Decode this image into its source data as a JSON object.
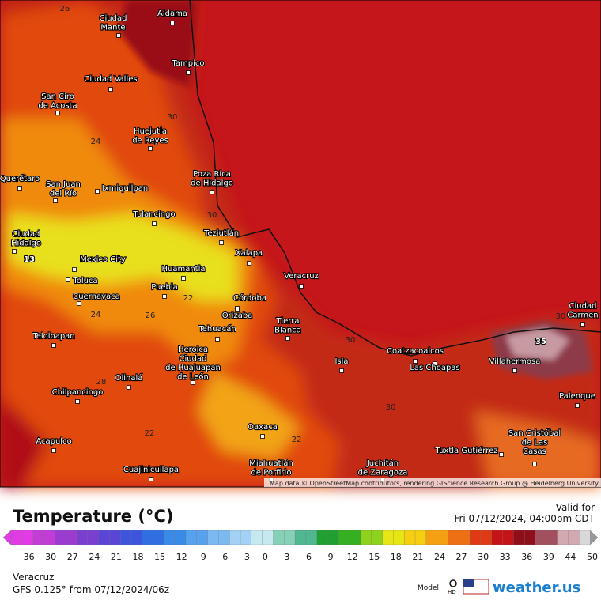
{
  "map": {
    "cities": [
      {
        "lines": [
          "Aldama"
        ]
      },
      {
        "lines": [
          "Ciudad",
          "Mante"
        ]
      },
      {
        "lines": [
          "Tampico"
        ]
      },
      {
        "lines": [
          "Ciudad Valles"
        ]
      },
      {
        "lines": [
          "San Ciro",
          "de Acosta"
        ]
      },
      {
        "lines": [
          "Huejutla",
          "de Reyes"
        ]
      },
      {
        "lines": [
          "Poza Rica",
          "de Hidalgo"
        ]
      },
      {
        "lines": [
          "Querétaro"
        ]
      },
      {
        "lines": [
          "San Juan",
          "del Río"
        ]
      },
      {
        "lines": [
          "Ixmiquilpan"
        ]
      },
      {
        "lines": [
          "Tulancingo"
        ]
      },
      {
        "lines": [
          "Teziutlán"
        ]
      },
      {
        "lines": [
          "Ciudad",
          "Hidalgo"
        ]
      },
      {
        "lines": [
          "Xalapa"
        ]
      },
      {
        "lines": [
          "Mexico City"
        ]
      },
      {
        "lines": [
          "Huamantla"
        ]
      },
      {
        "lines": [
          "Toluca"
        ]
      },
      {
        "lines": [
          "Veracruz"
        ]
      },
      {
        "lines": [
          "Puebla"
        ]
      },
      {
        "lines": [
          "Cuernavaca"
        ]
      },
      {
        "lines": [
          "Córdoba"
        ]
      },
      {
        "lines": [
          "Orizaba"
        ]
      },
      {
        "lines": [
          "Tierra",
          "Blanca"
        ]
      },
      {
        "lines": [
          "Tehuacán"
        ]
      },
      {
        "lines": [
          "Teloloapan"
        ]
      },
      {
        "lines": [
          "Heroica",
          "Ciudad",
          "de Huajuapan",
          "de León"
        ]
      },
      {
        "lines": [
          "Coatzacoalcos"
        ]
      },
      {
        "lines": [
          "Isla"
        ]
      },
      {
        "lines": [
          "Las Choapas"
        ]
      },
      {
        "lines": [
          "Villahermosa"
        ]
      },
      {
        "lines": [
          "Olinalá"
        ]
      },
      {
        "lines": [
          "Chilpancingo"
        ]
      },
      {
        "lines": [
          "Palenque"
        ]
      },
      {
        "lines": [
          "Oaxaca"
        ]
      },
      {
        "lines": [
          "Acapulco"
        ]
      },
      {
        "lines": [
          "San Cristóbal",
          "de Las",
          "Casas"
        ]
      },
      {
        "lines": [
          "Tuxtla Gutiérrez"
        ]
      },
      {
        "lines": [
          "Cuajinicuilapa"
        ]
      },
      {
        "lines": [
          "Juchitán",
          "de Zaragoza"
        ]
      },
      {
        "lines": [
          "Miahuatlán",
          "de Porfirio"
        ]
      },
      {
        "lines": [
          "Ciudad",
          "Carmen"
        ]
      }
    ],
    "contour_labels": [
      26,
      30,
      24,
      30,
      22,
      24,
      26,
      28,
      30,
      30,
      22,
      22,
      30
    ],
    "min_label": 13,
    "max_label": 35,
    "attribution": "Map data © OpenStreetMap contributors, rendering GIScience Research Group @ Heidelberg University"
  },
  "legend": {
    "title": "Temperature (°C)",
    "valid_label": "Valid for",
    "valid_time": "Fri 07/12/2024, 04:00pm CDT",
    "ticks": [
      {
        "value": -36,
        "label": "−36"
      },
      {
        "value": -30,
        "label": "−30"
      },
      {
        "value": -27,
        "label": "−27"
      },
      {
        "value": -24,
        "label": "−24"
      },
      {
        "value": -21,
        "label": "−21"
      },
      {
        "value": -18,
        "label": "−18"
      },
      {
        "value": -15,
        "label": "−15"
      },
      {
        "value": -12,
        "label": "−12"
      },
      {
        "value": -9,
        "label": "−9"
      },
      {
        "value": -6,
        "label": "−6"
      },
      {
        "value": -3,
        "label": "−3"
      },
      0,
      3,
      6,
      9,
      12,
      15,
      18,
      21,
      24,
      27,
      30,
      33,
      36,
      39,
      44,
      50
    ]
  },
  "footer": {
    "location": "Veracruz",
    "model_run": "GFS 0.125° from  07/12/2024/06z",
    "model_label": "Model:",
    "hd": "HD",
    "brand": "weather.us"
  }
}
